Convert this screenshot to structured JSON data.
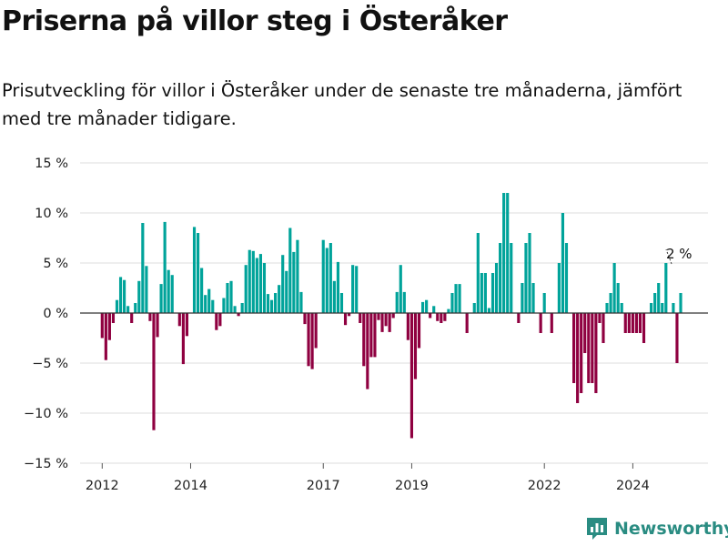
{
  "title": "Priserna på villor steg i Österåker",
  "subtitle": "Prisutveckling för villor i Österåker under de senaste tre månaderna, jämfört med tre månader tidigare.",
  "brand": {
    "name": "Newsworthy",
    "logo_icon": "newsworthy-logo-icon"
  },
  "colors": {
    "positive": "#00a39a",
    "negative": "#8f0040",
    "grid": "#dddddd",
    "zero_line": "#333333",
    "brand": "#2a8c82"
  },
  "chart_data": {
    "type": "bar",
    "ylim": [
      -15,
      15
    ],
    "y_ticks": [
      {
        "value": 15,
        "label": "15 %"
      },
      {
        "value": 10,
        "label": "10 %"
      },
      {
        "value": 5,
        "label": "5 %"
      },
      {
        "value": 0,
        "label": "0 %"
      },
      {
        "value": -5,
        "label": "−5 %"
      },
      {
        "value": -10,
        "label": "−10 %"
      },
      {
        "value": -15,
        "label": "−15 %"
      }
    ],
    "x_ticks": [
      {
        "value": 2012,
        "label": "2012"
      },
      {
        "value": 2014,
        "label": "2014"
      },
      {
        "value": 2017,
        "label": "2017"
      },
      {
        "value": 2019,
        "label": "2019"
      },
      {
        "value": 2022,
        "label": "2022"
      },
      {
        "value": 2024,
        "label": "2024"
      }
    ],
    "x_range": [
      2011.5,
      2025.7
    ],
    "grid": true,
    "legend": "none",
    "annotation": {
      "label": "2 %",
      "value": 2
    },
    "series": [
      {
        "start": 2012.0,
        "step": 0.08333,
        "values": [
          -2.5,
          -4.7,
          -2.7,
          -1.0,
          1.3,
          3.6,
          3.3,
          0.7,
          -1.0,
          1.0,
          3.2,
          9.0,
          4.7,
          -0.8,
          -11.7,
          -2.4,
          2.9,
          9.1,
          4.3,
          3.8,
          0,
          -1.3,
          -5.1,
          -2.3,
          0,
          8.6,
          8.0,
          4.5,
          1.8,
          2.4,
          1.3,
          -1.7,
          -1.3,
          1.5,
          3.0,
          3.2,
          0.7,
          -0.3,
          1.0,
          4.8,
          6.3,
          6.2,
          5.5,
          5.9,
          5.0,
          1.9,
          1.3,
          2.0,
          2.8,
          5.8,
          4.2,
          8.5,
          6.1,
          7.3,
          2.1,
          -1.1,
          -5.3,
          -5.6,
          -3.5,
          0,
          7.3,
          6.5,
          7.0,
          3.2,
          5.1,
          2.0,
          -1.2,
          -0.3,
          4.8,
          4.7,
          -1.0,
          -5.3,
          -7.6,
          -4.4,
          -4.4,
          -0.7,
          -1.9,
          -1.3,
          -1.9,
          -0.5,
          2.1,
          4.8,
          2.1,
          -2.7,
          -12.5,
          -6.6,
          -3.5,
          1.1,
          1.3,
          -0.5,
          0.7,
          -0.8,
          -1.0,
          -0.8,
          0.4,
          2.0,
          2.9,
          2.9,
          0,
          -2.0,
          0,
          1.0,
          8.0,
          4.0,
          4.0,
          0.5,
          4.0,
          5.0,
          7.0,
          12.0,
          12.0,
          7.0,
          0,
          -1.0,
          3.0,
          7.0,
          8.0,
          3.0,
          0,
          -2.0,
          2.0,
          0,
          -2.0,
          0,
          5.0,
          10.0,
          7.0,
          0,
          -7.0,
          -9.0,
          -8.0,
          -4.0,
          -7.0,
          -7.0,
          -8.0,
          -1.0,
          -3.0,
          1.0,
          2.0,
          5.0,
          3.0,
          1.0,
          -2.0,
          -2.0,
          -2.0,
          -2.0,
          -2.0,
          -3.0,
          0,
          1.0,
          2.0,
          3.0,
          1.0,
          5.0,
          0,
          1.0,
          -5.0,
          2.0
        ]
      }
    ]
  }
}
